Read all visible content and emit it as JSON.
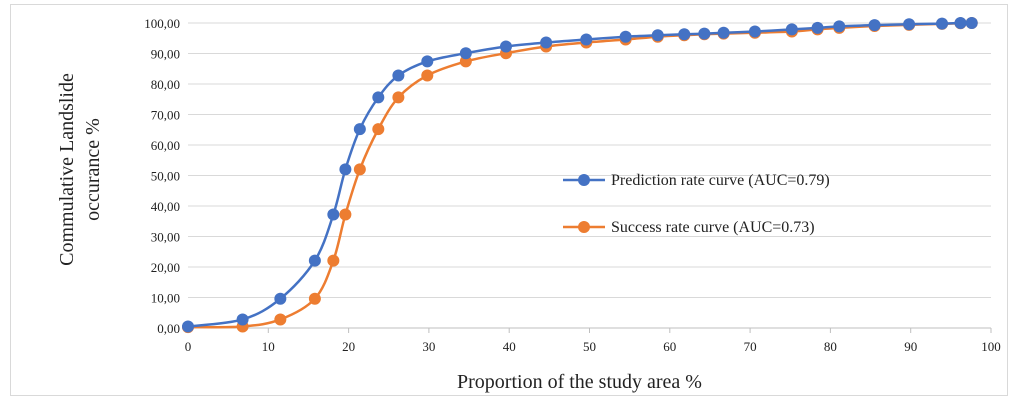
{
  "chart_data": {
    "type": "line",
    "title": "",
    "xlabel": "Proportion of the study area %",
    "ylabel_lines": [
      "Commulative Landslide",
      "occurance %"
    ],
    "xlim": [
      0,
      100
    ],
    "ylim": [
      0,
      100
    ],
    "x_ticks": [
      "0",
      "10",
      "20",
      "30",
      "40",
      "50",
      "60",
      "70",
      "80",
      "90",
      "100"
    ],
    "y_ticks": [
      "0,00",
      "10,00",
      "20,00",
      "30,00",
      "40,00",
      "50,00",
      "60,00",
      "70,00",
      "80,00",
      "90,00",
      "100,00"
    ],
    "grid": "horizontal",
    "legend_position": "right-center",
    "series": [
      {
        "name": "Prediction rate curve (AUC=0.79)",
        "color": "#4472C4",
        "points": [
          [
            0,
            0.5
          ],
          [
            6.8,
            2.8
          ],
          [
            11.5,
            9.6
          ],
          [
            15.8,
            22.1
          ],
          [
            18.1,
            37.2
          ],
          [
            19.6,
            52.0
          ],
          [
            21.4,
            65.2
          ],
          [
            23.7,
            75.6
          ],
          [
            26.2,
            82.8
          ],
          [
            29.8,
            87.4
          ],
          [
            34.6,
            90.1
          ],
          [
            39.6,
            92.3
          ],
          [
            44.6,
            93.6
          ],
          [
            49.6,
            94.6
          ],
          [
            54.5,
            95.5
          ],
          [
            58.5,
            96.0
          ],
          [
            61.8,
            96.3
          ],
          [
            64.3,
            96.5
          ],
          [
            66.7,
            96.8
          ],
          [
            70.6,
            97.2
          ],
          [
            75.2,
            97.9
          ],
          [
            78.4,
            98.4
          ],
          [
            81.1,
            98.9
          ],
          [
            85.5,
            99.3
          ],
          [
            89.8,
            99.6
          ],
          [
            93.9,
            99.8
          ],
          [
            96.2,
            100.0
          ],
          [
            97.6,
            100.0
          ]
        ]
      },
      {
        "name": "Success rate curve (AUC=0.73)",
        "color": "#ED7D31",
        "points": [
          [
            0,
            0.3
          ],
          [
            6.8,
            0.5
          ],
          [
            11.5,
            2.8
          ],
          [
            15.8,
            9.6
          ],
          [
            18.1,
            22.1
          ],
          [
            19.6,
            37.2
          ],
          [
            21.4,
            52.0
          ],
          [
            23.7,
            65.2
          ],
          [
            26.2,
            75.6
          ],
          [
            29.8,
            82.8
          ],
          [
            34.6,
            87.4
          ],
          [
            39.6,
            90.1
          ],
          [
            44.6,
            92.3
          ],
          [
            49.6,
            93.6
          ],
          [
            54.5,
            94.6
          ],
          [
            58.5,
            95.5
          ],
          [
            61.8,
            96.0
          ],
          [
            64.3,
            96.3
          ],
          [
            66.7,
            96.5
          ],
          [
            70.6,
            96.8
          ],
          [
            75.2,
            97.2
          ],
          [
            78.4,
            97.9
          ],
          [
            81.1,
            98.4
          ],
          [
            85.5,
            99.0
          ],
          [
            89.8,
            99.4
          ],
          [
            93.9,
            99.7
          ],
          [
            96.2,
            99.9
          ],
          [
            97.6,
            100.0
          ]
        ]
      }
    ]
  }
}
